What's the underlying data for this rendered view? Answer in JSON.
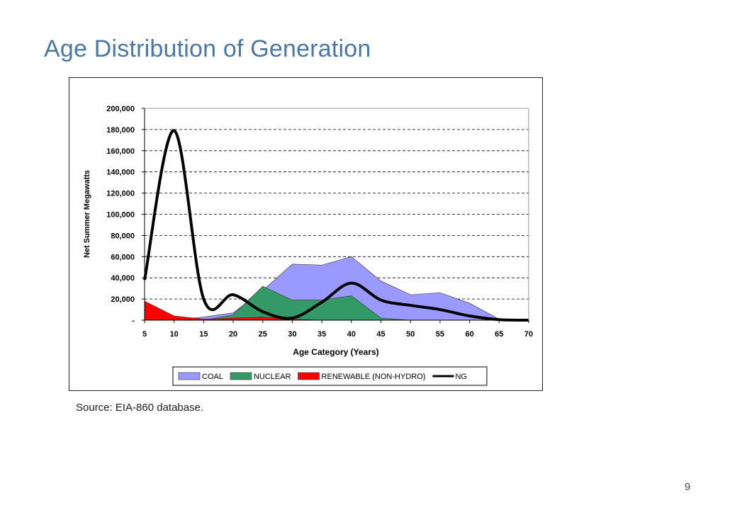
{
  "slide": {
    "title": "Age Distribution of Generation",
    "source": "Source: EIA-860 database.",
    "page_number": "9"
  },
  "chart_data": {
    "type": "area",
    "title": "",
    "xlabel": "Age Category (Years)",
    "ylabel": "Net Summer Megawatts",
    "x": [
      5,
      10,
      15,
      20,
      25,
      30,
      35,
      40,
      45,
      50,
      55,
      60,
      65,
      70
    ],
    "xlim": [
      5,
      70
    ],
    "ylim": [
      0,
      200000
    ],
    "y_ticks": [
      0,
      20000,
      40000,
      60000,
      80000,
      100000,
      120000,
      140000,
      160000,
      180000,
      200000
    ],
    "y_tick_labels": [
      "-",
      "20,000",
      "40,000",
      "60,000",
      "80,000",
      "100,000",
      "120,000",
      "140,000",
      "160,000",
      "180,000",
      "200,000"
    ],
    "x_tick_labels": [
      "5",
      "10",
      "15",
      "20",
      "25",
      "30",
      "35",
      "40",
      "45",
      "50",
      "55",
      "60",
      "65",
      "70"
    ],
    "grid": "horizontal dashed",
    "legend_position": "bottom",
    "series": [
      {
        "name": "COAL",
        "kind": "area",
        "color": "#9999ff",
        "values": [
          0,
          0,
          3000,
          7000,
          28000,
          53000,
          52000,
          60000,
          37000,
          24000,
          26000,
          16000,
          1000,
          0
        ]
      },
      {
        "name": "NUCLEAR",
        "kind": "area",
        "color": "#339966",
        "values": [
          0,
          0,
          0,
          5000,
          32000,
          19000,
          19000,
          23000,
          2000,
          0,
          0,
          0,
          0,
          0
        ]
      },
      {
        "name": "RENEWABLE (NON-HYDRO)",
        "kind": "area",
        "color": "#ff0000",
        "values": [
          18000,
          4000,
          1000,
          2000,
          3000,
          1000,
          0,
          0,
          0,
          0,
          0,
          0,
          0,
          0
        ]
      },
      {
        "name": "NG",
        "kind": "line",
        "color": "#000000",
        "values": [
          38000,
          179000,
          20000,
          24000,
          8000,
          2000,
          17000,
          35000,
          19000,
          14000,
          10000,
          4000,
          500,
          0
        ]
      }
    ]
  }
}
